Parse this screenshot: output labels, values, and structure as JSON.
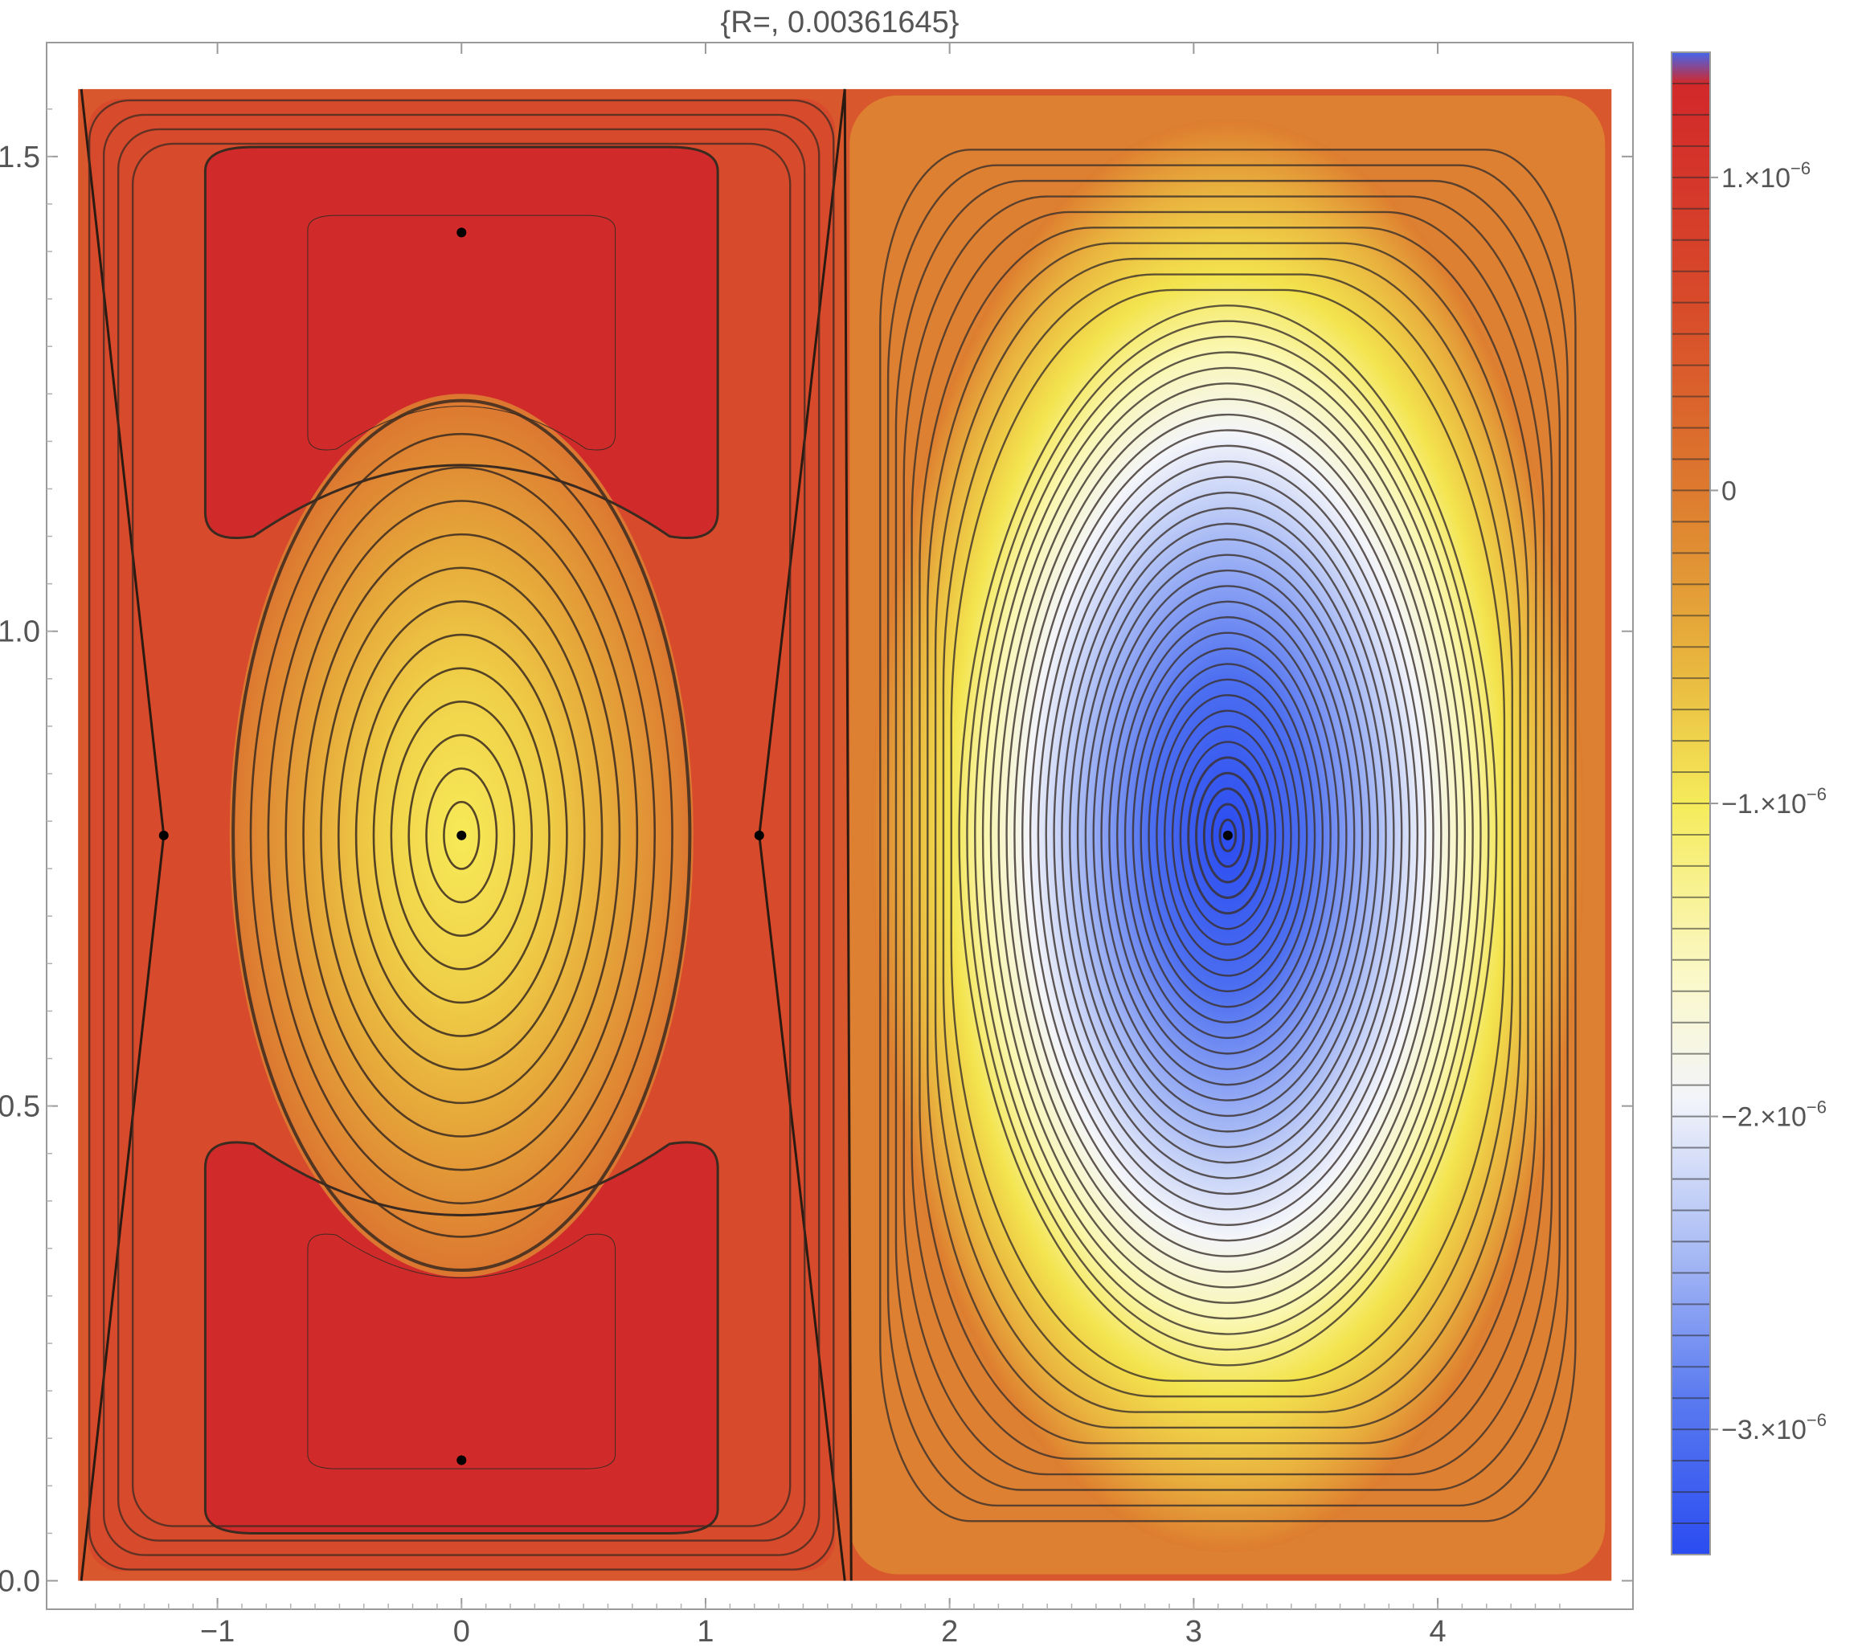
{
  "chart_data": {
    "type": "contour",
    "title": "{R=, 0.00361645}",
    "xlim": [
      -1.571,
      4.712
    ],
    "ylim": [
      0.0,
      1.571
    ],
    "frame_x_range": [
      -1.7,
      4.8
    ],
    "frame_y_range": [
      -0.03,
      1.62
    ],
    "x_ticks": [
      {
        "value": -1,
        "label": "−1"
      },
      {
        "value": 0,
        "label": "0"
      },
      {
        "value": 1,
        "label": "1"
      },
      {
        "value": 2,
        "label": "2"
      },
      {
        "value": 3,
        "label": "3"
      },
      {
        "value": 4,
        "label": "4"
      }
    ],
    "y_ticks": [
      {
        "value": 0.0,
        "label": "0.0"
      },
      {
        "value": 0.5,
        "label": "0.5"
      },
      {
        "value": 1.0,
        "label": "1.0"
      },
      {
        "value": 1.5,
        "label": "1.5"
      }
    ],
    "value_range": [
      -3.4e-06,
      1.4e-06
    ],
    "colorbar": {
      "position": "right",
      "ticks": [
        {
          "value": 1e-06,
          "mantissa": "1.×10",
          "exponent": "−6"
        },
        {
          "value": 0,
          "mantissa": "0",
          "exponent": ""
        },
        {
          "value": -1e-06,
          "mantissa": "−1.×10",
          "exponent": "−6"
        },
        {
          "value": -2e-06,
          "mantissa": "−2.×10",
          "exponent": "−6"
        },
        {
          "value": -3e-06,
          "mantissa": "−3.×10",
          "exponent": "−6"
        }
      ],
      "colors": [
        {
          "value": -3.4e-06,
          "color": "#2b4cf0"
        },
        {
          "value": -2.9e-06,
          "color": "#5a7af0"
        },
        {
          "value": -2.4e-06,
          "color": "#aebff5"
        },
        {
          "value": -1.95e-06,
          "color": "#f2f4fa"
        },
        {
          "value": -1.55e-06,
          "color": "#fbf8c8"
        },
        {
          "value": -1e-06,
          "color": "#f5eb5a"
        },
        {
          "value": -5.5e-07,
          "color": "#e8b53d"
        },
        {
          "value": 0.0,
          "color": "#dd7a2e"
        },
        {
          "value": 6e-07,
          "color": "#d84a2a"
        },
        {
          "value": 1.3e-06,
          "color": "#d2282a"
        },
        {
          "value": 1.4e-06,
          "color": "#4466ee"
        }
      ]
    },
    "critical_points": [
      {
        "x": 0.0,
        "y": 1.42,
        "kind": "extremum"
      },
      {
        "x": 0.0,
        "y": 0.785,
        "kind": "extremum"
      },
      {
        "x": 0.0,
        "y": 0.127,
        "kind": "extremum"
      },
      {
        "x": 3.14,
        "y": 0.785,
        "kind": "extremum"
      },
      {
        "x": -1.22,
        "y": 0.785,
        "kind": "saddle"
      },
      {
        "x": 1.22,
        "y": 0.785,
        "kind": "saddle"
      }
    ],
    "grid": false
  }
}
